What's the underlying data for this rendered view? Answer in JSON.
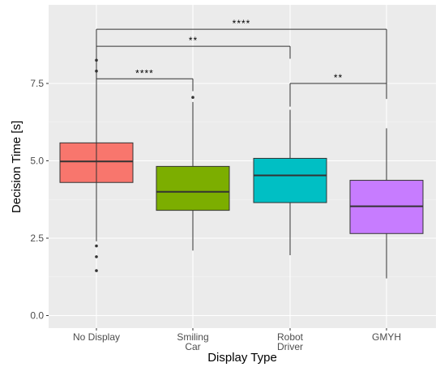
{
  "chart_data": {
    "type": "boxplot",
    "xlabel": "Display Type",
    "ylabel": "Decision Time [s]",
    "ylim": [
      -0.3,
      8.8
    ],
    "yticks": [
      "0.0",
      "2.5",
      "5.0",
      "7.5"
    ],
    "ytick_values": [
      0,
      2.5,
      5,
      7.5
    ],
    "grid": true,
    "categories": [
      {
        "label_lines": [
          "No Display"
        ],
        "q1": 4.3,
        "median": 4.98,
        "q3": 5.58,
        "whisker_low": 2.4,
        "whisker_high": 7.0,
        "outliers": [
          8.25,
          7.9,
          2.25,
          1.9,
          1.45
        ],
        "color": "#F8766D"
      },
      {
        "label_lines": [
          "Smiling",
          "Car"
        ],
        "q1": 3.4,
        "median": 4.0,
        "q3": 4.82,
        "whisker_low": 2.1,
        "whisker_high": 6.9,
        "outliers": [
          7.05
        ],
        "color": "#7CAE00"
      },
      {
        "label_lines": [
          "Robot",
          "Driver"
        ],
        "q1": 3.65,
        "median": 4.53,
        "q3": 5.08,
        "whisker_low": 1.95,
        "whisker_high": 6.65,
        "outliers": [],
        "color": "#00BFC4"
      },
      {
        "label_lines": [
          "GMYH"
        ],
        "q1": 2.65,
        "median": 3.53,
        "q3": 4.37,
        "whisker_low": 1.2,
        "whisker_high": 6.05,
        "outliers": [],
        "color": "#C77CFF"
      }
    ],
    "comparisons": [
      {
        "from": 0,
        "to": 3,
        "y": 9.25,
        "label": "****"
      },
      {
        "from": 0,
        "to": 2,
        "y": 8.7,
        "label": "**"
      },
      {
        "from": 0,
        "to": 1,
        "y": 7.65,
        "label": "****"
      },
      {
        "from": 2,
        "to": 3,
        "y": 7.5,
        "label": "**"
      }
    ]
  }
}
